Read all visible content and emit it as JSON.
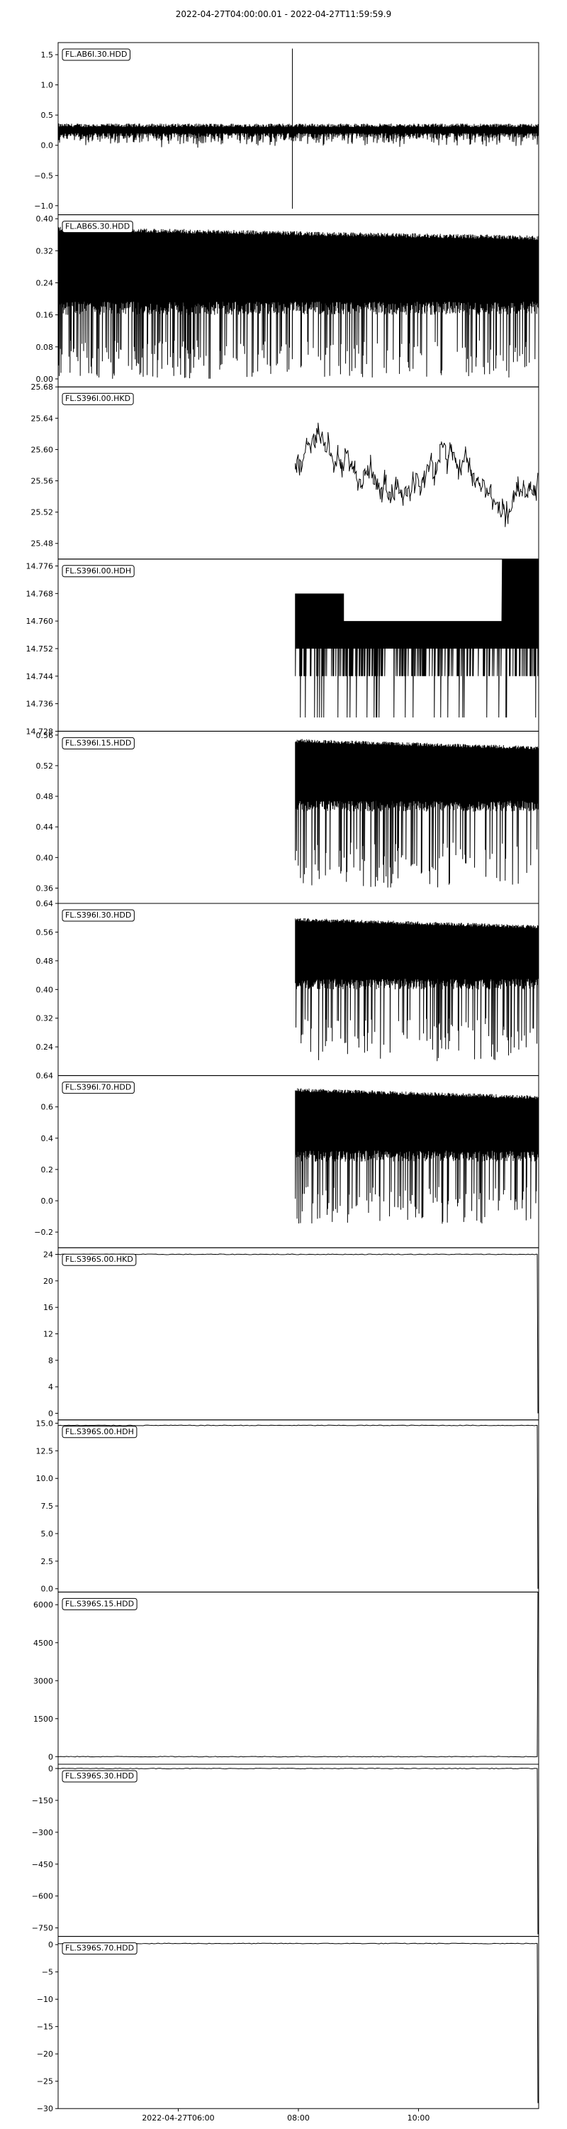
{
  "chart_data": {
    "type": "line",
    "title": "2022-04-27T04:00:00.01  -  2022-04-27T11:59:59.9",
    "x_ticks": [
      "2022-04-27T06:00",
      "08:00",
      "10:00"
    ],
    "x_tick_hours": [
      6,
      8,
      10
    ],
    "x_range_hours": [
      4,
      12
    ],
    "panels": [
      {
        "name": "FL.AB6I.30.HDD",
        "ylim": [
          -1.15,
          1.7
        ],
        "yticks": [
          -1.0,
          -0.5,
          0.0,
          0.5,
          1.0,
          1.5
        ],
        "ytick_labels": [
          "−1.0",
          "−0.5",
          "0.0",
          "0.5",
          "1.0",
          "1.5"
        ],
        "pattern": "spike",
        "base": 0.3,
        "noise_low": 0.0,
        "spike_hour": 7.9,
        "spike_values": [
          1.6,
          -1.05
        ]
      },
      {
        "name": "FL.AB6S.30.HDD",
        "ylim": [
          -0.02,
          0.41
        ],
        "yticks": [
          0.0,
          0.08,
          0.16,
          0.24,
          0.32,
          0.4
        ],
        "ytick_labels": [
          "0.00",
          "0.08",
          "0.16",
          "0.24",
          "0.32",
          "0.40"
        ],
        "pattern": "dense",
        "band": [
          0.16,
          0.38
        ],
        "tail_low": 0.0
      },
      {
        "name": "FL.S396I.00.HKD",
        "ylim": [
          25.46,
          25.68
        ],
        "yticks": [
          25.48,
          25.52,
          25.56,
          25.6,
          25.64,
          25.68
        ],
        "ytick_labels": [
          "25.48",
          "25.52",
          "25.56",
          "25.60",
          "25.64",
          "25.68"
        ],
        "pattern": "wander",
        "start_hour": 7.95,
        "center": 25.58,
        "amplitude": 0.05
      },
      {
        "name": "FL.S396I.00.HDH",
        "ylim": [
          14.728,
          14.778
        ],
        "yticks": [
          14.728,
          14.736,
          14.744,
          14.752,
          14.76,
          14.768,
          14.776
        ],
        "ytick_labels": [
          "14.728",
          "14.736",
          "14.744",
          "14.752",
          "14.760",
          "14.768",
          "14.776"
        ],
        "pattern": "steps",
        "start_hour": 7.95,
        "band": [
          14.744,
          14.77
        ],
        "tail_low": 14.732
      },
      {
        "name": "FL.S396I.15.HDD",
        "ylim": [
          0.34,
          0.565
        ],
        "yticks": [
          0.36,
          0.4,
          0.44,
          0.48,
          0.52,
          0.56
        ],
        "ytick_labels": [
          "0.36",
          "0.40",
          "0.44",
          "0.48",
          "0.52",
          "0.56"
        ],
        "pattern": "dense",
        "start_hour": 7.95,
        "band": [
          0.46,
          0.555
        ],
        "tail_low": 0.36
      },
      {
        "name": "FL.S396I.30.HDD",
        "ylim": [
          0.16,
          0.64
        ],
        "yticks": [
          0.24,
          0.32,
          0.4,
          0.48,
          0.56,
          0.64
        ],
        "ytick_labels": [
          "0.24",
          "0.32",
          "0.40",
          "0.48",
          "0.56",
          "0.64"
        ],
        "pattern": "dense",
        "start_hour": 7.95,
        "band": [
          0.4,
          0.6
        ],
        "tail_low": 0.2
      },
      {
        "name": "FL.S396I.70.HDD",
        "ylim": [
          -0.3,
          0.8
        ],
        "yticks": [
          -0.2,
          0.0,
          0.2,
          0.4,
          0.6
        ],
        "ytick_labels": [
          "−0.2",
          "0.0",
          "0.2",
          "0.4",
          "0.6"
        ],
        "top_label": "0.64",
        "pattern": "dense",
        "start_hour": 7.95,
        "band": [
          0.25,
          0.72
        ],
        "tail_low": -0.15
      },
      {
        "name": "FL.S396S.00.HKD",
        "ylim": [
          -1,
          25
        ],
        "yticks": [
          0,
          4,
          8,
          12,
          16,
          20,
          24
        ],
        "ytick_labels": [
          "0",
          "4",
          "8",
          "12",
          "16",
          "20",
          "24"
        ],
        "pattern": "flat",
        "value": 24.0,
        "end_drop": 0
      },
      {
        "name": "FL.S396S.00.HDH",
        "ylim": [
          -0.3,
          15.3
        ],
        "yticks": [
          0.0,
          2.5,
          5.0,
          7.5,
          10.0,
          12.5,
          15.0
        ],
        "ytick_labels": [
          "0.0",
          "2.5",
          "5.0",
          "7.5",
          "10.0",
          "12.5",
          "15.0"
        ],
        "pattern": "flat",
        "value": 14.8,
        "end_drop": 0
      },
      {
        "name": "FL.S396S.15.HDD",
        "ylim": [
          -300,
          6500
        ],
        "yticks": [
          0,
          1500,
          3000,
          4500,
          6000
        ],
        "ytick_labels": [
          "0",
          "1500",
          "3000",
          "4500",
          "6000"
        ],
        "pattern": "flat",
        "value": 0,
        "end_spike": 6500
      },
      {
        "name": "FL.S396S.30.HDD",
        "ylim": [
          -790,
          20
        ],
        "yticks": [
          -750,
          -600,
          -450,
          -300,
          -150,
          0
        ],
        "ytick_labels": [
          "−750",
          "−600",
          "−450",
          "−300",
          "−150",
          "0"
        ],
        "pattern": "flat",
        "value": 0,
        "end_drop": -780
      },
      {
        "name": "FL.S396S.70.HDD",
        "ylim": [
          -30,
          1.5
        ],
        "yticks": [
          -30,
          -25,
          -20,
          -15,
          -10,
          -5,
          0
        ],
        "ytick_labels": [
          "−30",
          "−25",
          "−20",
          "−15",
          "−10",
          "−5",
          "0"
        ],
        "pattern": "flat",
        "value": 0.2,
        "end_drop": -29
      }
    ]
  }
}
